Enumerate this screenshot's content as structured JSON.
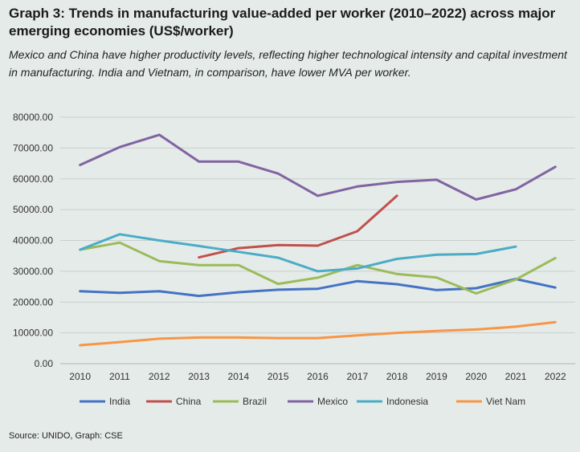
{
  "header": {
    "title": "Graph 3: Trends in manufacturing value-added per worker (2010–2022) across major emerging economies (US$/worker)",
    "subtitle": "Mexico and China have higher productivity levels, reflecting higher technological intensity and capital investment in manufacturing. India and Vietnam, in comparison, have lower MVA per worker."
  },
  "source": "Source: UNIDO, Graph: CSE",
  "chart_data": {
    "type": "line",
    "title": "Graph 3: Trends in manufacturing value-added per worker (2010–2022) across major emerging economies (US$/worker)",
    "xlabel": "",
    "ylabel": "",
    "x": [
      "2010",
      "2011",
      "2012",
      "2013",
      "2014",
      "2015",
      "2016",
      "2017",
      "2018",
      "2019",
      "2020",
      "2021",
      "2022"
    ],
    "ylim": [
      0,
      80000
    ],
    "yticks": [
      "0.00",
      "10000.00",
      "20000.00",
      "30000.00",
      "40000.00",
      "50000.00",
      "60000.00",
      "70000.00",
      "80000.00"
    ],
    "grid": true,
    "legend_position": "bottom",
    "series": [
      {
        "name": "India",
        "color": "#4472c4",
        "values": [
          23500,
          23000,
          23500,
          22000,
          23200,
          24000,
          24300,
          26800,
          25800,
          23900,
          24500,
          27500,
          24700
        ]
      },
      {
        "name": "China",
        "color": "#c0504d",
        "values": [
          null,
          null,
          null,
          34500,
          37500,
          38500,
          38300,
          43000,
          54500,
          null,
          null,
          null,
          null
        ]
      },
      {
        "name": "Brazil",
        "color": "#9bbb59",
        "values": [
          37000,
          39300,
          33300,
          32000,
          32000,
          25900,
          27900,
          32000,
          29100,
          28000,
          22800,
          27300,
          34300
        ]
      },
      {
        "name": "Mexico",
        "color": "#8064a2",
        "values": [
          64500,
          70300,
          74300,
          65600,
          65600,
          61700,
          54500,
          57500,
          59000,
          59700,
          53300,
          56600,
          63900
        ]
      },
      {
        "name": "Indonesia",
        "color": "#4bacc6",
        "values": [
          37000,
          42000,
          40000,
          38200,
          36300,
          34400,
          30000,
          30900,
          34000,
          35400,
          35600,
          38000,
          null
        ]
      },
      {
        "name": "Viet Nam",
        "color": "#f79646",
        "values": [
          6000,
          7000,
          8100,
          8500,
          8500,
          8300,
          8300,
          9200,
          10000,
          10600,
          11100,
          12000,
          13500
        ]
      }
    ]
  }
}
